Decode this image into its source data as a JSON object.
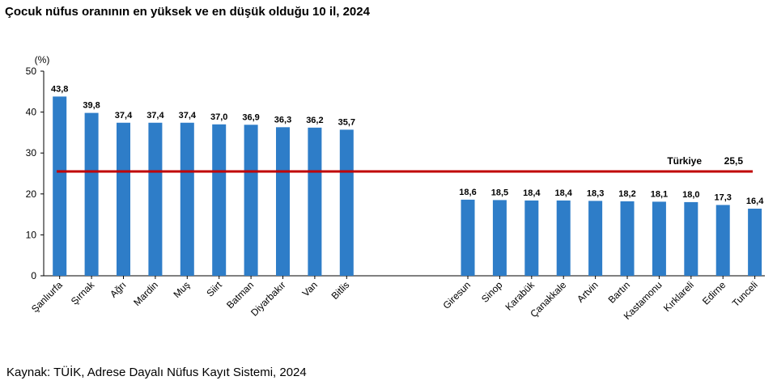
{
  "title": "Çocuk nüfus oranının en yüksek ve en düşük olduğu 10 il, 2024",
  "source": "Kaynak: TÜİK, Adrese Dayalı Nüfus Kayıt Sistemi, 2024",
  "chart_data": {
    "type": "bar",
    "unit_label": "(%)",
    "ylim": [
      0,
      50
    ],
    "yticks": [
      0,
      10,
      20,
      30,
      40,
      50
    ],
    "groups": [
      {
        "categories": [
          "Şanlıurfa",
          "Şırnak",
          "Ağrı",
          "Mardin",
          "Muş",
          "Siirt",
          "Batman",
          "Diyarbakır",
          "Van",
          "Bitlis"
        ],
        "values": [
          43.8,
          39.8,
          37.4,
          37.4,
          37.4,
          37.0,
          36.9,
          36.3,
          36.2,
          35.7
        ],
        "labels": [
          "43,8",
          "39,8",
          "37,4",
          "37,4",
          "37,4",
          "37,0",
          "36,9",
          "36,3",
          "36,2",
          "35,7"
        ]
      },
      {
        "categories": [
          "Giresun",
          "Sinop",
          "Karabük",
          "Çanakkale",
          "Artvin",
          "Bartın",
          "Kastamonu",
          "Kırklareli",
          "Edirne",
          "Tunceli"
        ],
        "values": [
          18.6,
          18.5,
          18.4,
          18.4,
          18.3,
          18.2,
          18.1,
          18.0,
          17.3,
          16.4
        ],
        "labels": [
          "18,6",
          "18,5",
          "18,4",
          "18,4",
          "18,3",
          "18,2",
          "18,1",
          "18,0",
          "17,3",
          "16,4"
        ]
      }
    ],
    "reference_line": {
      "label": "Türkiye",
      "value": 25.5,
      "value_label": "25,5",
      "color": "#c00000"
    },
    "bar_color": "#2e7dc8",
    "grid": false,
    "legend": "none"
  }
}
